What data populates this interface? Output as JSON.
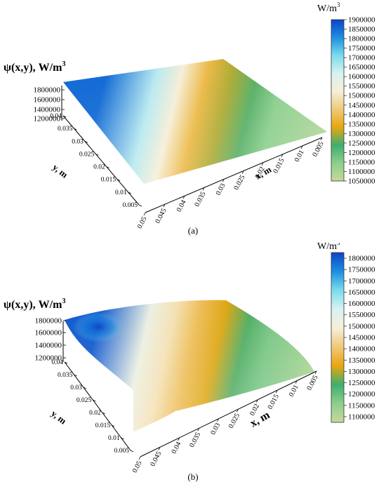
{
  "chart_data": [
    {
      "type": "surface",
      "caption": "(a)",
      "zlabel": "ψ(x,y), W/m",
      "zlabel_sup": "3",
      "xlabel": "x, m",
      "ylabel": "y, m",
      "x_ticks": [
        "0.05",
        "0.045",
        "0.04",
        "0.035",
        "0.03",
        "0.025",
        "0.02",
        "0.015",
        "0.01",
        "0.005"
      ],
      "y_ticks": [
        "0.005",
        "0.01",
        "0.015",
        "0.02",
        "0.025",
        "0.03",
        "0.035",
        "0.04"
      ],
      "z_ticks": [
        "1200000",
        "1400000",
        "1600000",
        "1800000"
      ],
      "colorbar": {
        "title": "W/m",
        "title_sup": "3",
        "ticks": [
          "1900000",
          "1850000",
          "1800000",
          "1750000",
          "1700000",
          "1650000",
          "1600000",
          "1550000",
          "1500000",
          "1450000",
          "1400000",
          "1350000",
          "1300000",
          "1250000",
          "1200000",
          "1150000",
          "1100000",
          "1050000"
        ],
        "range": [
          1050000,
          1900000
        ]
      },
      "surface_profile": [
        {
          "x": 0.05,
          "psi": 1850000
        },
        {
          "x": 0.04,
          "psi": 1650000
        },
        {
          "x": 0.035,
          "psi": 1520000
        },
        {
          "x": 0.03,
          "psi": 1380000
        },
        {
          "x": 0.025,
          "psi": 1300000
        },
        {
          "x": 0.02,
          "psi": 1250000
        },
        {
          "x": 0.015,
          "psi": 1150000
        },
        {
          "x": 0.005,
          "psi": 1100000
        }
      ]
    },
    {
      "type": "surface",
      "caption": "(b)",
      "zlabel": "ψ(x,y), W/m",
      "zlabel_sup": "3",
      "xlabel": "x, m",
      "ylabel": "y, m",
      "x_ticks": [
        "0.05",
        "0.045",
        "0.04",
        "0.035",
        "0.03",
        "0.025",
        "0.02",
        "0.015",
        "0.01",
        "0.005"
      ],
      "y_ticks": [
        "0.005",
        "0.01",
        "0.015",
        "0.02",
        "0.025",
        "0.03",
        "0.035",
        "0.04"
      ],
      "z_ticks": [
        "1200000",
        "1400000",
        "1600000",
        "1800000"
      ],
      "colorbar": {
        "title": "W/m",
        "title_sup": "3",
        "ticks": [
          "1800000",
          "1750000",
          "1700000",
          "1650000",
          "1600000",
          "1550000",
          "1500000",
          "1450000",
          "1400000",
          "1350000",
          "1300000",
          "1250000",
          "1200000",
          "1150000",
          "1100000"
        ],
        "range": [
          1075000,
          1825000
        ]
      },
      "surface_profile": [
        {
          "x": 0.05,
          "psi": 1800000
        },
        {
          "x": 0.04,
          "psi": 1520000
        },
        {
          "x": 0.035,
          "psi": 1460000
        },
        {
          "x": 0.03,
          "psi": 1380000
        },
        {
          "x": 0.025,
          "psi": 1320000
        },
        {
          "x": 0.02,
          "psi": 1250000
        },
        {
          "x": 0.015,
          "psi": 1180000
        },
        {
          "x": 0.005,
          "psi": 1120000
        }
      ]
    }
  ],
  "colors": {
    "scale": [
      "#c9d89a",
      "#8ccf8c",
      "#3fae6e",
      "#e8a70f",
      "#f0c97a",
      "#f6efd9",
      "#d8f2f2",
      "#7cdcec",
      "#1c8fe0",
      "#0d44c8"
    ]
  }
}
